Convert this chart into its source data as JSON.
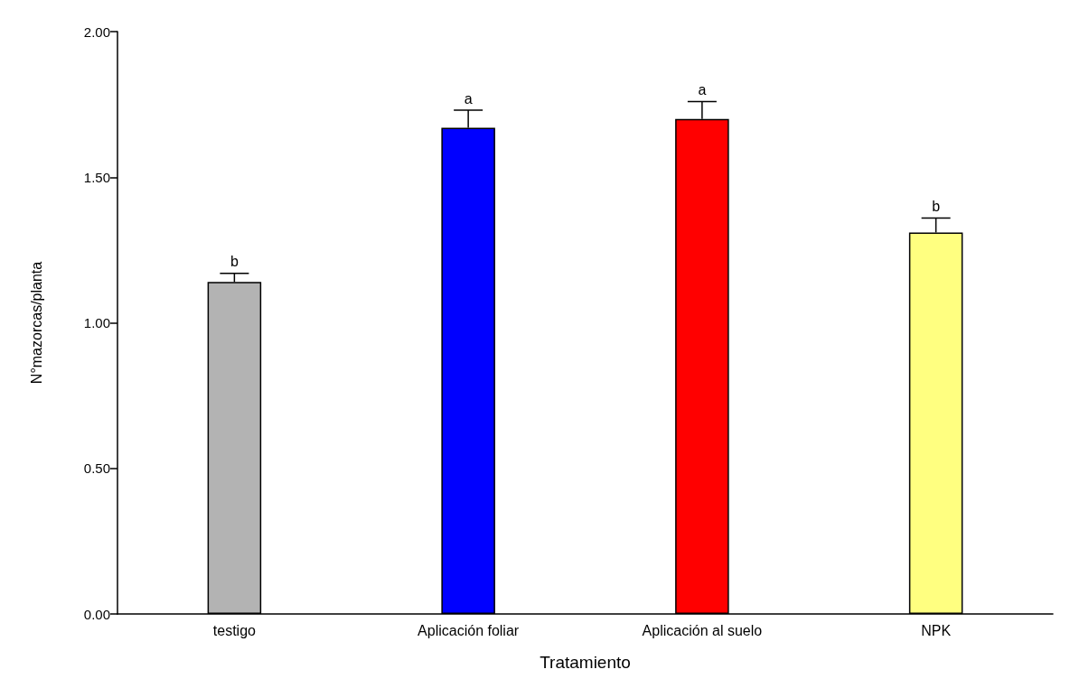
{
  "chart_data": {
    "type": "bar",
    "xlabel": "Tratamiento",
    "ylabel": "N°mazorcas/planta",
    "categories": [
      "testigo",
      "Aplicación foliar",
      "Aplicación al suelo",
      "NPK"
    ],
    "values": [
      1.14,
      1.67,
      1.7,
      1.31
    ],
    "colors": [
      "#b3b3b3",
      "#0000ff",
      "#ff0000",
      "#ffff80"
    ],
    "errors": [
      [
        1.14,
        1.17
      ],
      [
        1.67,
        1.73
      ],
      [
        1.7,
        1.76
      ],
      [
        1.31,
        1.36
      ]
    ],
    "ylim": [
      0,
      2
    ],
    "yticks": [
      {
        "value": 0,
        "label": "0.00"
      },
      {
        "value": 0.5,
        "label": "0.50"
      },
      {
        "value": 1,
        "label": "1.00"
      },
      {
        "value": 1.5,
        "label": "1.50"
      },
      {
        "value": 2,
        "label": "2.00"
      }
    ],
    "grid": false,
    "annotations": [
      "b",
      "a",
      "a",
      "b"
    ]
  }
}
